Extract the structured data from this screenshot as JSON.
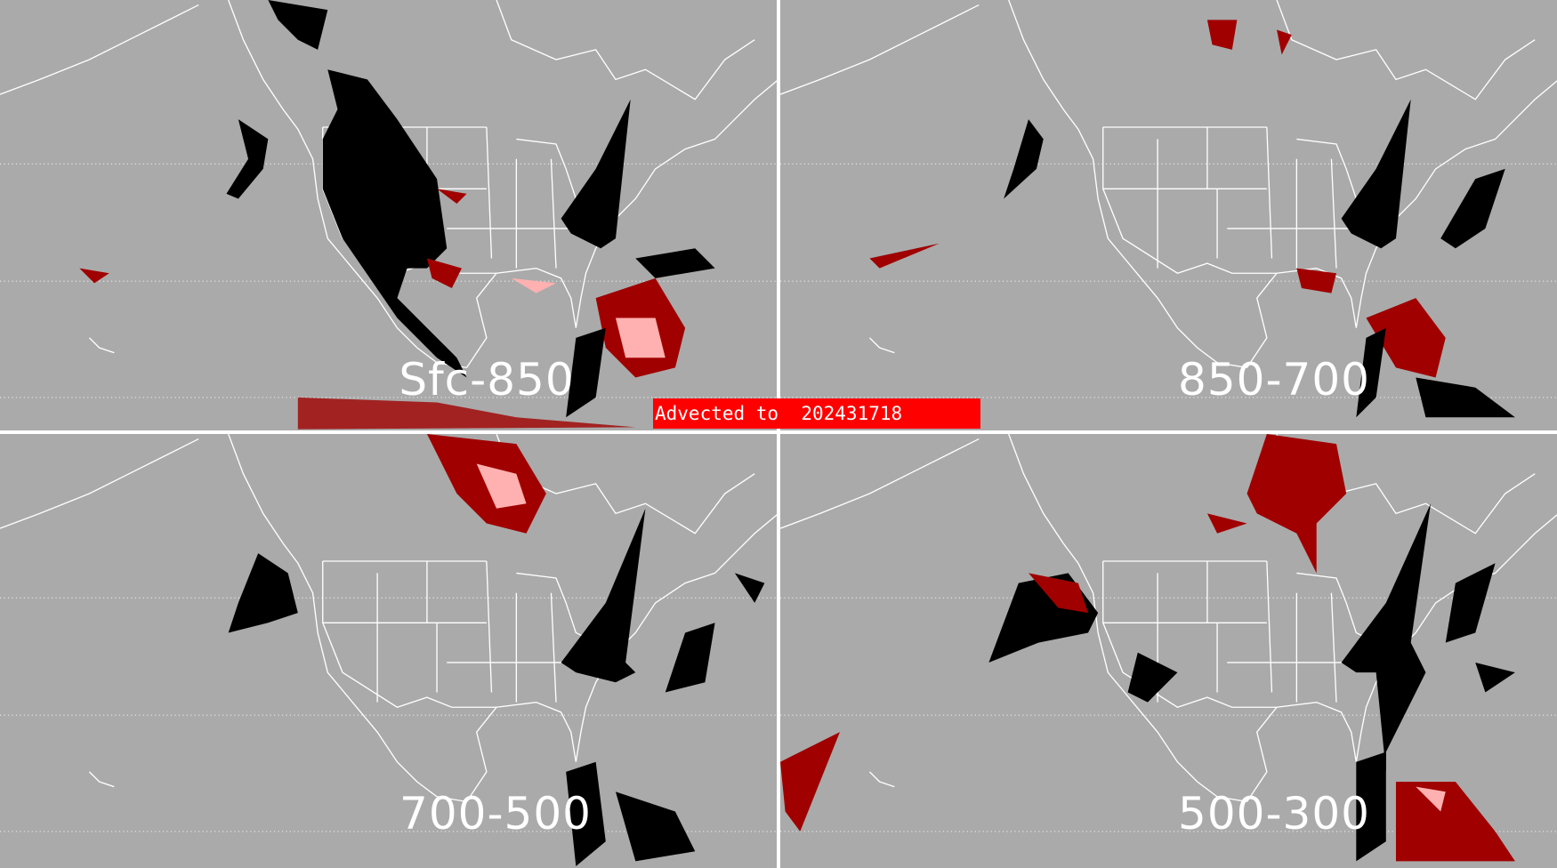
{
  "banner": {
    "text": "Advected to  202431718",
    "color": "#ff0000"
  },
  "panels": [
    {
      "label": "Sfc-850"
    },
    {
      "label": "850-700"
    },
    {
      "label": "700-500"
    },
    {
      "label": "500-300"
    }
  ],
  "colors": {
    "background": "#aaaaaa",
    "outline": "#ffffff",
    "mask": "#000000",
    "feature_dark": "#a00000",
    "feature_light": "#ffb0b0"
  }
}
